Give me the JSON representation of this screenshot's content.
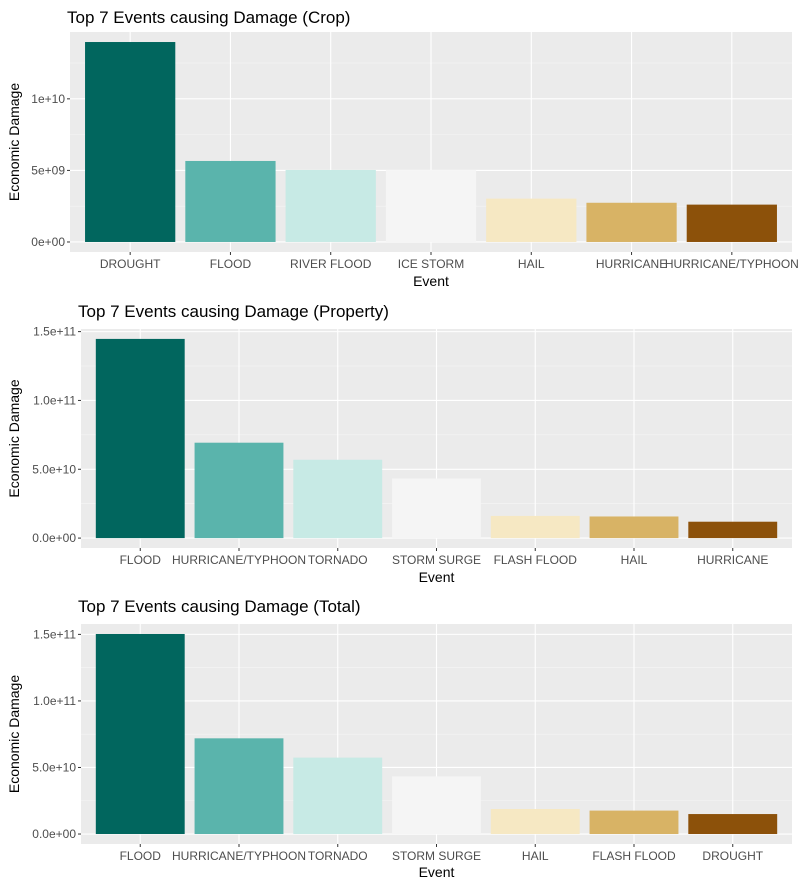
{
  "colors": {
    "panel_background": "#EBEBEB",
    "grid_major": "#FFFFFF",
    "grid_minor": "#F5F5F5",
    "bar_palette": [
      "#01665E",
      "#5AB4AC",
      "#C7EAE5",
      "#F5F5F5",
      "#F6E8C3",
      "#D8B365",
      "#8C510A"
    ]
  },
  "chart_data": [
    {
      "type": "bar",
      "title": "Top 7 Events causing Damage (Crop)",
      "xlabel": "Event",
      "ylabel": "Economic Damage",
      "categories": [
        "DROUGHT",
        "FLOOD",
        "RIVER FLOOD",
        "ICE STORM",
        "HAIL",
        "HURRICANE",
        "HURRICANE/TYPHOON"
      ],
      "values": [
        13970000000,
        5660000000,
        5030000000,
        5020000000,
        3030000000,
        2740000000,
        2610000000
      ],
      "ylim": [
        -700000000,
        14670000000
      ],
      "yticks": [
        0,
        5000000000,
        10000000000
      ],
      "ytick_labels": [
        "0e+00",
        "5e+09",
        "1e+10"
      ],
      "grid": true,
      "legend": "none"
    },
    {
      "type": "bar",
      "title": "Top 7 Events causing Damage (Property)",
      "xlabel": "Event",
      "ylabel": "Economic Damage",
      "categories": [
        "FLOOD",
        "HURRICANE/TYPHOON",
        "TORNADO",
        "STORM SURGE",
        "FLASH FLOOD",
        "HAIL",
        "HURRICANE"
      ],
      "values": [
        144700000000,
        69300000000,
        56900000000,
        43300000000,
        16100000000,
        15700000000,
        11900000000
      ],
      "ylim": [
        -7200000000,
        151900000000
      ],
      "yticks": [
        0,
        50000000000,
        100000000000,
        150000000000
      ],
      "ytick_labels": [
        "0.0e+00",
        "5.0e+10",
        "1.0e+11",
        "1.5e+11"
      ],
      "grid": true,
      "legend": "none"
    },
    {
      "type": "bar",
      "title": "Top 7 Events causing Damage (Total)",
      "xlabel": "Event",
      "ylabel": "Economic Damage",
      "categories": [
        "FLOOD",
        "HURRICANE/TYPHOON",
        "TORNADO",
        "STORM SURGE",
        "HAIL",
        "FLASH FLOOD",
        "DROUGHT"
      ],
      "values": [
        150300000000,
        71900000000,
        57400000000,
        43300000000,
        18800000000,
        17600000000,
        15000000000
      ],
      "ylim": [
        -7500000000,
        157800000000
      ],
      "yticks": [
        0,
        50000000000,
        100000000000,
        150000000000
      ],
      "ytick_labels": [
        "0.0e+00",
        "5.0e+10",
        "1.0e+11",
        "1.5e+11"
      ],
      "grid": true,
      "legend": "none"
    }
  ]
}
